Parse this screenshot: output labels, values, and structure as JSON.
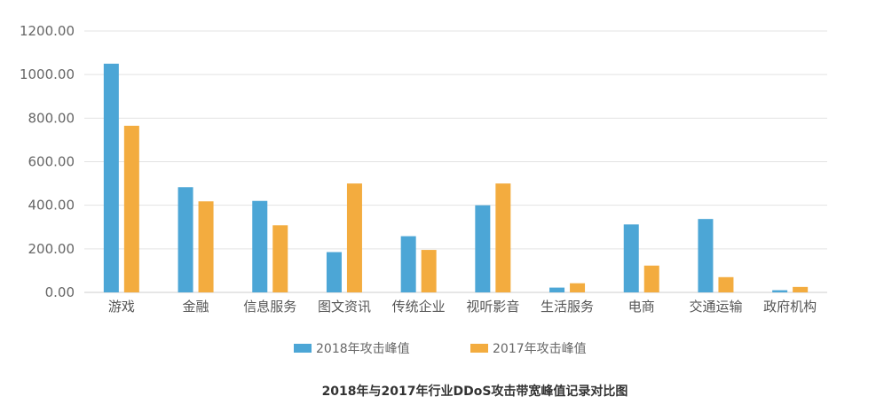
{
  "chart_data": {
    "type": "bar",
    "title": "2018年与2017年行业DDoS攻击带宽峰值记录对比图",
    "categories": [
      "游戏",
      "金融",
      "信息服务",
      "图文资讯",
      "传统企业",
      "视听影音",
      "生活服务",
      "电商",
      "交通运输",
      "政府机构"
    ],
    "series": [
      {
        "name": "2018年攻击峰值",
        "color": "#4ca6d6",
        "values": [
          1050,
          483,
          420,
          185,
          258,
          400,
          22,
          312,
          337,
          10
        ]
      },
      {
        "name": "2017年攻击峰值",
        "color": "#f3ac3f",
        "values": [
          765,
          418,
          308,
          500,
          195,
          500,
          42,
          123,
          70,
          25
        ]
      }
    ],
    "ylim": [
      0,
      1200
    ],
    "yticks": [
      "0.00",
      "200.00",
      "400.00",
      "600.00",
      "800.00",
      "1000.00",
      "1200.00"
    ],
    "grid": true,
    "legend_position": "bottom"
  }
}
